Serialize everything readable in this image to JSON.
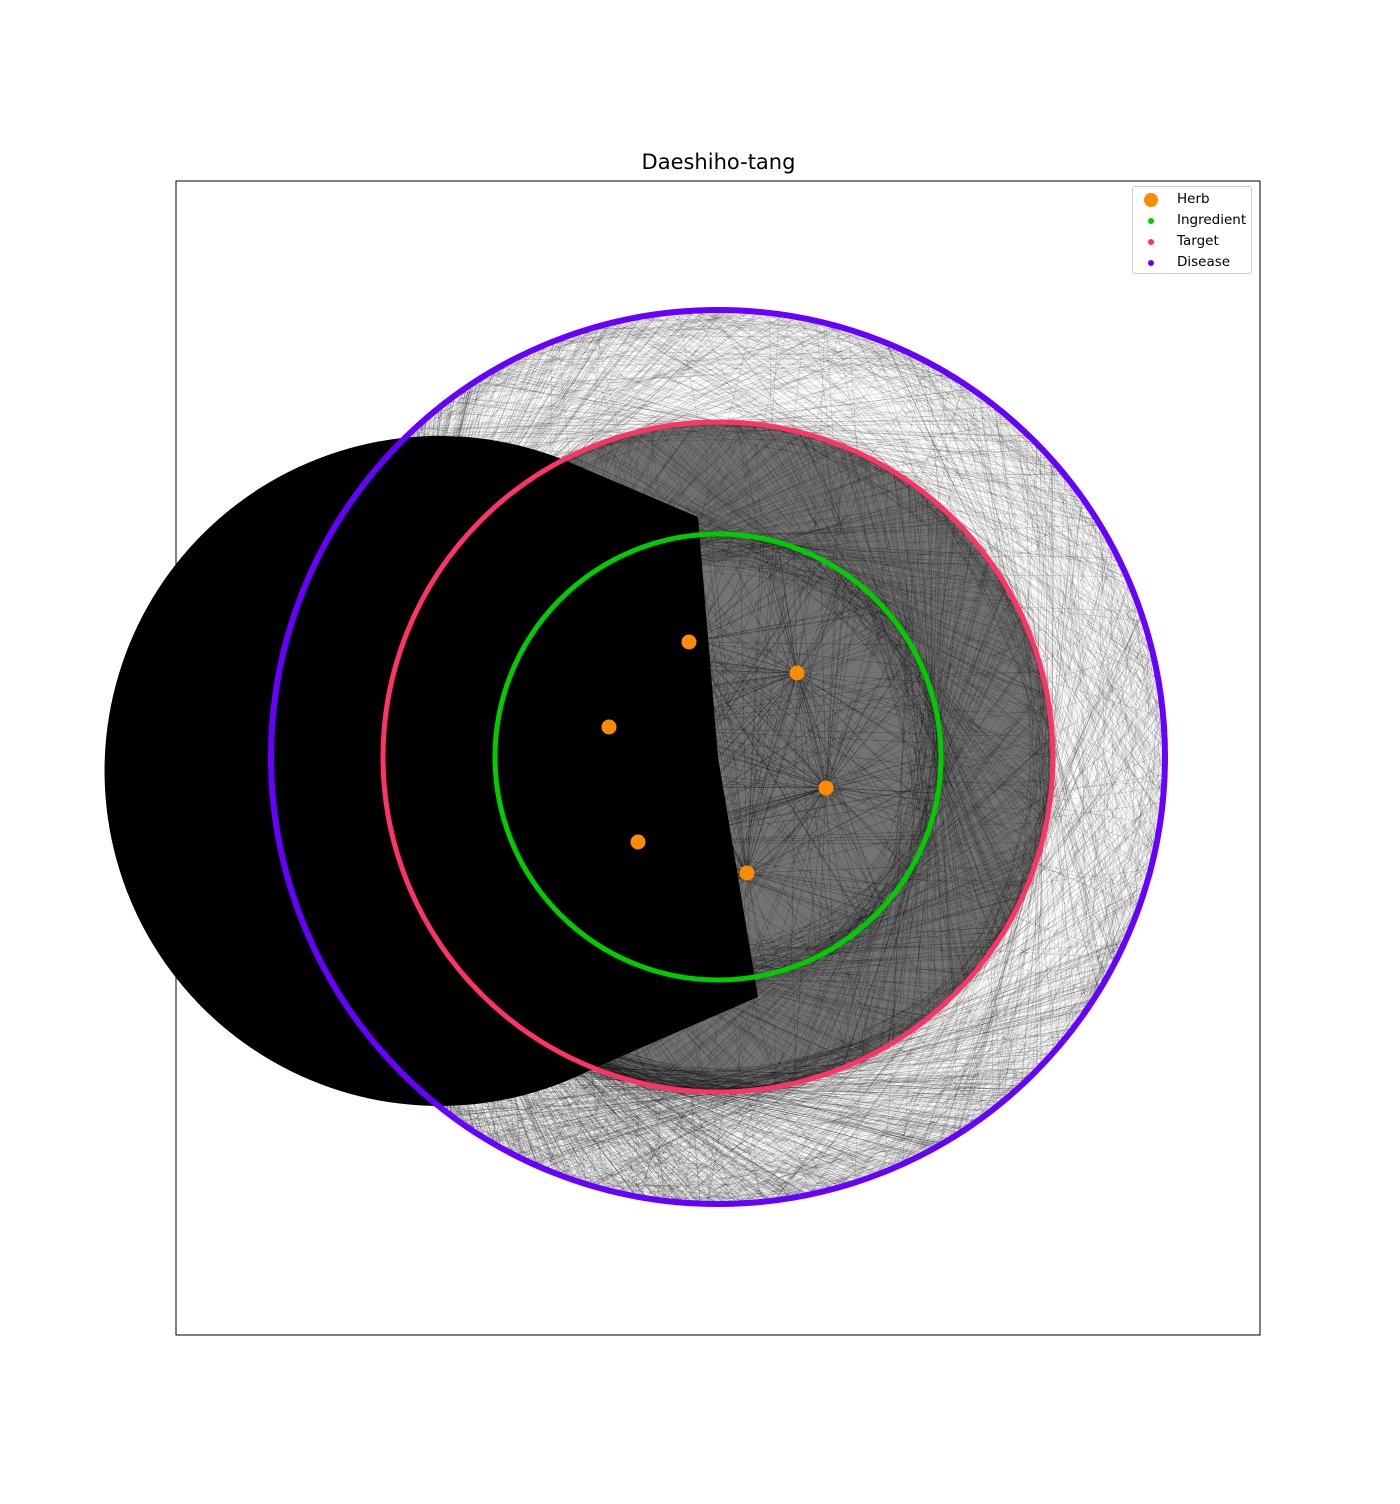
{
  "chart_data": {
    "type": "network",
    "title": "Daeshiho-tang",
    "legend": {
      "placement": "top-right",
      "entries": [
        {
          "name": "Herb",
          "color": "#ff8c00"
        },
        {
          "name": "Ingredient",
          "color": "#00cc00"
        },
        {
          "name": "Target",
          "color": "#ff3366"
        },
        {
          "name": "Disease",
          "color": "#6600ff"
        }
      ]
    },
    "layers": [
      {
        "name": "Herb",
        "node_count": 6
      },
      {
        "name": "Ingredient",
        "layout": "ring"
      },
      {
        "name": "Target",
        "layout": "ring"
      },
      {
        "name": "Disease",
        "layout": "ring"
      }
    ],
    "edge_color": "#000000",
    "axes_visible": false,
    "grid": false
  }
}
